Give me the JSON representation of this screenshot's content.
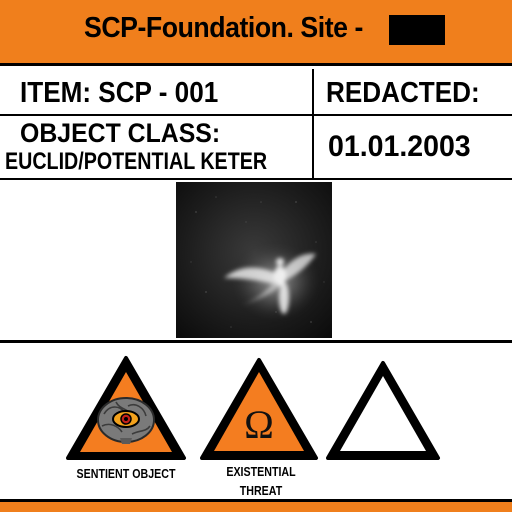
{
  "header": {
    "title": "SCP-Foundation. Site -",
    "redacted_site": ""
  },
  "item": {
    "label": "ITEM: SCP -  001"
  },
  "redacted": {
    "label": "REDACTED:",
    "date": "01.01.2003"
  },
  "object_class": {
    "label": "OBJECT CLASS:",
    "value": "EUCLID/POTENTIAL KETER"
  },
  "photo": {
    "icon": "winged-figure-photo"
  },
  "hazards": [
    {
      "icon": "brain-eye-icon",
      "caption": "SENTIENT OBJECT",
      "fill": "#f47d20"
    },
    {
      "icon": "omega-icon",
      "caption": "EXISTENTIAL THREAT",
      "fill": "#f47d20"
    },
    {
      "icon": "blank-triangle-icon",
      "caption": "",
      "fill": "#ffffff"
    }
  ],
  "colors": {
    "accent": "#f07f1c",
    "border": "#000000"
  }
}
